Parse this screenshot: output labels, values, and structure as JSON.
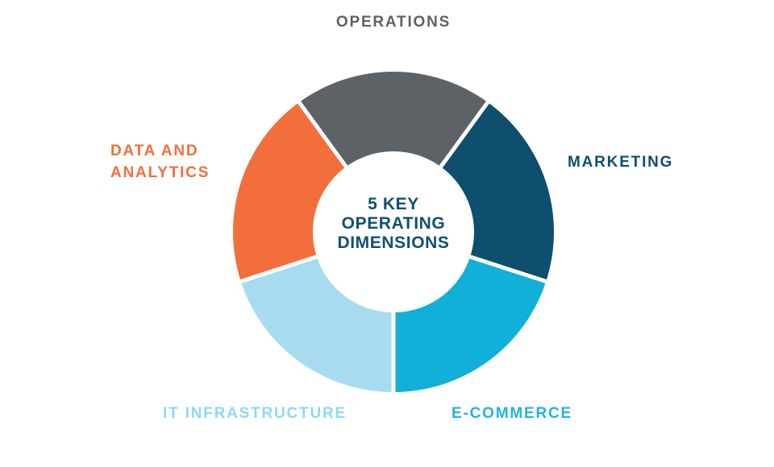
{
  "page": {
    "background": "#ffffff"
  },
  "chart_data": {
    "type": "pie",
    "variant": "donut",
    "title": "5 KEY OPERATING DIMENSIONS",
    "center_label_lines": [
      "5 KEY",
      "OPERATING",
      "DIMENSIONS"
    ],
    "center_label_color": "#125070",
    "categories": [
      "OPERATIONS",
      "MARKETING",
      "E-COMMERCE",
      "IT INFRASTRUCTURE",
      "DATA AND ANALYTICS"
    ],
    "values": [
      20,
      20,
      20,
      20,
      20
    ],
    "segments": [
      {
        "label": "OPERATIONS",
        "value": 20,
        "color": "#5d6267",
        "label_color": "#5d6267"
      },
      {
        "label": "MARKETING",
        "value": 20,
        "color": "#0e4e6e",
        "label_color": "#0e4e6e"
      },
      {
        "label": "E-COMMERCE",
        "value": 20,
        "color": "#10b0d9",
        "label_color": "#22b4e0"
      },
      {
        "label": "IT INFRASTRUCTURE",
        "value": 20,
        "color": "#a6dbf0",
        "label_color": "#8bdaf3"
      },
      {
        "label": "DATA AND ANALYTICS",
        "value": 20,
        "color": "#f26f3b",
        "label_color": "#f26f3b"
      }
    ],
    "start_angle_deg": -36,
    "direction": "clockwise",
    "gap_color": "#ffffff",
    "inner_radius_ratio": 0.5,
    "legend_position": "labels around chart"
  }
}
